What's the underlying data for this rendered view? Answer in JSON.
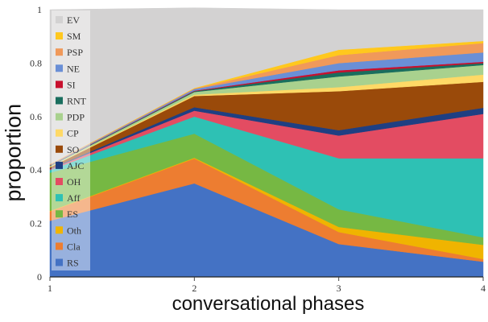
{
  "chart_data": {
    "type": "area",
    "stacked": true,
    "title": "",
    "xlabel": "conversational phases",
    "ylabel": "proportion",
    "x": [
      1,
      2,
      3,
      4
    ],
    "xticks": [
      "1",
      "2",
      "3",
      "4"
    ],
    "yticks": [
      "0",
      "0.2",
      "0.4",
      "0.6",
      "0.8",
      "1"
    ],
    "ylim": [
      0,
      1
    ],
    "legend_position": "left",
    "series": [
      {
        "name": "RS",
        "color": "#4472c4",
        "values": [
          0.21,
          0.35,
          0.123,
          0.057
        ]
      },
      {
        "name": "Cla",
        "color": "#ed7d31",
        "values": [
          0.035,
          0.093,
          0.045,
          0.01
        ]
      },
      {
        "name": "Oth",
        "color": "#f0b400",
        "values": [
          0.002,
          0.003,
          0.019,
          0.053
        ]
      },
      {
        "name": "ES",
        "color": "#76b843",
        "values": [
          0.143,
          0.09,
          0.066,
          0.028
        ]
      },
      {
        "name": "Aff",
        "color": "#2ec1b4",
        "values": [
          0.01,
          0.064,
          0.191,
          0.296
        ]
      },
      {
        "name": "OH",
        "color": "#e34c62",
        "values": [
          0.003,
          0.022,
          0.085,
          0.166
        ]
      },
      {
        "name": "AJC",
        "color": "#1f3f82",
        "values": [
          0.002,
          0.013,
          0.02,
          0.023
        ]
      },
      {
        "name": "SO",
        "color": "#9a4a0a",
        "values": [
          0.005,
          0.042,
          0.146,
          0.097
        ]
      },
      {
        "name": "CP",
        "color": "#ffd966",
        "values": [
          0.002,
          0.005,
          0.015,
          0.027
        ]
      },
      {
        "name": "PDP",
        "color": "#a9d18e",
        "values": [
          0.003,
          0.01,
          0.04,
          0.036
        ]
      },
      {
        "name": "RNT",
        "color": "#1a6e5e",
        "values": [
          0.001,
          0.003,
          0.015,
          0.007
        ]
      },
      {
        "name": "SI",
        "color": "#c8102e",
        "values": [
          0.001,
          0.002,
          0.008,
          0.005
        ]
      },
      {
        "name": "NE",
        "color": "#6a8fd6",
        "values": [
          0.002,
          0.006,
          0.027,
          0.035
        ]
      },
      {
        "name": "PSP",
        "color": "#f0995a",
        "values": [
          0.002,
          0.002,
          0.03,
          0.035
        ]
      },
      {
        "name": "SM",
        "color": "#ffc81e",
        "values": [
          0.001,
          0.002,
          0.02,
          0.008
        ]
      },
      {
        "name": "EV",
        "color": "#d3d2d2",
        "values": [
          0.578,
          0.3,
          0.15,
          0.117
        ]
      }
    ]
  }
}
